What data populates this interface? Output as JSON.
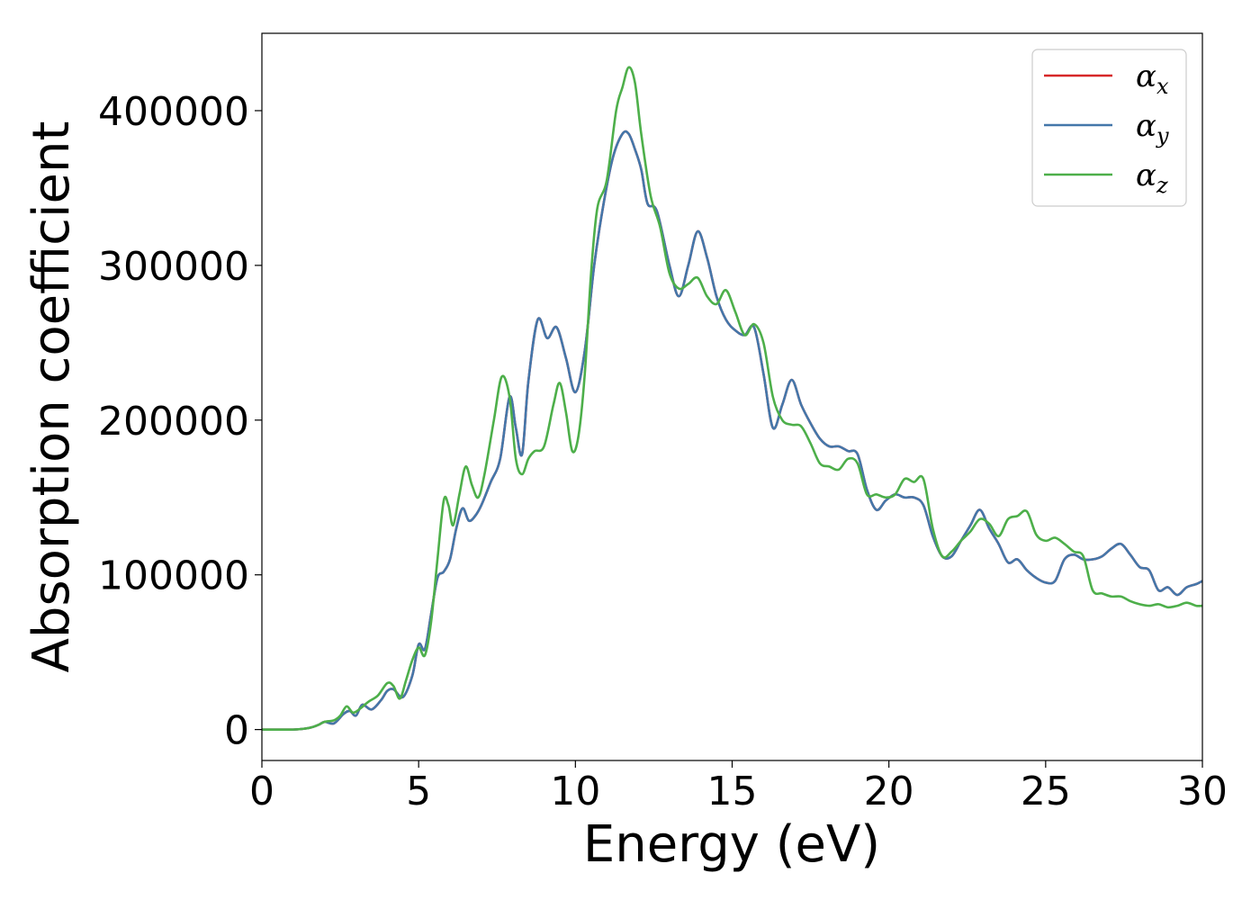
{
  "chart_data": {
    "type": "line",
    "title": "",
    "xlabel": "Energy (eV)",
    "ylabel": "Absorption coefficient",
    "xlim": [
      0,
      30
    ],
    "ylim": [
      -20000,
      450000
    ],
    "x_ticks": [
      0,
      5,
      10,
      15,
      20,
      25,
      30
    ],
    "x_tick_labels": [
      "0",
      "5",
      "10",
      "15",
      "20",
      "25",
      "30"
    ],
    "y_ticks": [
      0,
      100000,
      200000,
      300000,
      400000
    ],
    "y_tick_labels": [
      "0",
      "100000",
      "200000",
      "300000",
      "400000"
    ],
    "grid": false,
    "legend_position": "top-right",
    "series": [
      {
        "name": "α_x",
        "legend_symbol": "α",
        "legend_sub": "x",
        "color": "#d62728",
        "x": [
          0,
          1,
          1.5,
          1.8,
          2.0,
          2.3,
          2.6,
          2.8,
          3.0,
          3.2,
          3.5,
          3.8,
          4.0,
          4.2,
          4.5,
          4.8,
          5.0,
          5.2,
          5.4,
          5.6,
          5.8,
          6.0,
          6.2,
          6.4,
          6.6,
          6.8,
          7.0,
          7.3,
          7.6,
          7.9,
          8.1,
          8.3,
          8.5,
          8.8,
          9.1,
          9.4,
          9.7,
          10.0,
          10.3,
          10.6,
          10.9,
          11.2,
          11.5,
          11.7,
          11.9,
          12.1,
          12.3,
          12.6,
          13.0,
          13.3,
          13.6,
          13.9,
          14.2,
          14.5,
          14.8,
          15.1,
          15.4,
          15.7,
          16.0,
          16.3,
          16.6,
          16.9,
          17.2,
          17.5,
          17.8,
          18.1,
          18.4,
          18.7,
          19.0,
          19.3,
          19.6,
          19.9,
          20.2,
          20.5,
          20.8,
          21.1,
          21.4,
          21.7,
          22.0,
          22.3,
          22.6,
          22.9,
          23.2,
          23.5,
          23.8,
          24.1,
          24.4,
          24.7,
          25.0,
          25.3,
          25.6,
          25.9,
          26.2,
          26.5,
          26.8,
          27.1,
          27.4,
          27.7,
          28.0,
          28.3,
          28.6,
          28.9,
          29.2,
          29.5,
          29.8,
          30.0
        ],
        "y": [
          0,
          0,
          1000,
          3000,
          5000,
          4000,
          10000,
          12000,
          9000,
          16000,
          13000,
          19000,
          25000,
          26000,
          21000,
          35000,
          55000,
          52000,
          75000,
          98000,
          102000,
          110000,
          130000,
          143000,
          135000,
          138000,
          145000,
          160000,
          175000,
          215000,
          195000,
          178000,
          225000,
          265000,
          253000,
          260000,
          240000,
          218000,
          245000,
          300000,
          340000,
          370000,
          385000,
          385000,
          375000,
          362000,
          340000,
          335000,
          300000,
          280000,
          300000,
          322000,
          305000,
          280000,
          265000,
          258000,
          255000,
          260000,
          230000,
          195000,
          210000,
          226000,
          210000,
          198000,
          188000,
          183000,
          183000,
          180000,
          178000,
          155000,
          142000,
          148000,
          152000,
          150000,
          150000,
          145000,
          125000,
          112000,
          112000,
          122000,
          132000,
          142000,
          130000,
          120000,
          108000,
          110000,
          103000,
          98000,
          95000,
          96000,
          110000,
          113000,
          110000,
          110000,
          112000,
          117000,
          120000,
          113000,
          105000,
          103000,
          90000,
          92000,
          87000,
          92000,
          94000,
          96000
        ]
      },
      {
        "name": "α_y",
        "legend_symbol": "α",
        "legend_sub": "y",
        "color": "#4477aa",
        "x": [
          0,
          1,
          1.5,
          1.8,
          2.0,
          2.3,
          2.6,
          2.8,
          3.0,
          3.2,
          3.5,
          3.8,
          4.0,
          4.2,
          4.5,
          4.8,
          5.0,
          5.2,
          5.4,
          5.6,
          5.8,
          6.0,
          6.2,
          6.4,
          6.6,
          6.8,
          7.0,
          7.3,
          7.6,
          7.9,
          8.1,
          8.3,
          8.5,
          8.8,
          9.1,
          9.4,
          9.7,
          10.0,
          10.3,
          10.6,
          10.9,
          11.2,
          11.5,
          11.7,
          11.9,
          12.1,
          12.3,
          12.6,
          13.0,
          13.3,
          13.6,
          13.9,
          14.2,
          14.5,
          14.8,
          15.1,
          15.4,
          15.7,
          16.0,
          16.3,
          16.6,
          16.9,
          17.2,
          17.5,
          17.8,
          18.1,
          18.4,
          18.7,
          19.0,
          19.3,
          19.6,
          19.9,
          20.2,
          20.5,
          20.8,
          21.1,
          21.4,
          21.7,
          22.0,
          22.3,
          22.6,
          22.9,
          23.2,
          23.5,
          23.8,
          24.1,
          24.4,
          24.7,
          25.0,
          25.3,
          25.6,
          25.9,
          26.2,
          26.5,
          26.8,
          27.1,
          27.4,
          27.7,
          28.0,
          28.3,
          28.6,
          28.9,
          29.2,
          29.5,
          29.8,
          30.0
        ],
        "y": [
          0,
          0,
          1000,
          3000,
          5000,
          4000,
          10000,
          12000,
          9000,
          16000,
          13000,
          19000,
          25000,
          26000,
          21000,
          35000,
          55000,
          52000,
          75000,
          98000,
          102000,
          110000,
          130000,
          143000,
          135000,
          138000,
          145000,
          160000,
          175000,
          215000,
          195000,
          178000,
          225000,
          265000,
          253000,
          260000,
          240000,
          218000,
          245000,
          300000,
          340000,
          370000,
          385000,
          385000,
          375000,
          362000,
          340000,
          335000,
          300000,
          280000,
          300000,
          322000,
          305000,
          280000,
          265000,
          258000,
          255000,
          260000,
          230000,
          195000,
          210000,
          226000,
          210000,
          198000,
          188000,
          183000,
          183000,
          180000,
          178000,
          155000,
          142000,
          148000,
          152000,
          150000,
          150000,
          145000,
          125000,
          112000,
          112000,
          122000,
          132000,
          142000,
          130000,
          120000,
          108000,
          110000,
          103000,
          98000,
          95000,
          96000,
          110000,
          113000,
          110000,
          110000,
          112000,
          117000,
          120000,
          113000,
          105000,
          103000,
          90000,
          92000,
          87000,
          92000,
          94000,
          96000
        ]
      },
      {
        "name": "α_z",
        "legend_symbol": "α",
        "legend_sub": "z",
        "color": "#4daf4a",
        "x": [
          0,
          1,
          1.5,
          1.8,
          2.0,
          2.3,
          2.5,
          2.7,
          2.9,
          3.1,
          3.4,
          3.7,
          4.0,
          4.2,
          4.4,
          4.6,
          4.8,
          5.0,
          5.2,
          5.4,
          5.6,
          5.8,
          5.95,
          6.1,
          6.3,
          6.5,
          6.7,
          6.9,
          7.1,
          7.4,
          7.65,
          7.9,
          8.1,
          8.3,
          8.5,
          8.7,
          9.0,
          9.3,
          9.5,
          9.7,
          9.9,
          10.1,
          10.3,
          10.5,
          10.7,
          11.0,
          11.3,
          11.5,
          11.7,
          11.9,
          12.1,
          12.4,
          12.7,
          13.0,
          13.3,
          13.6,
          13.9,
          14.2,
          14.5,
          14.8,
          15.1,
          15.4,
          15.7,
          16.0,
          16.3,
          16.6,
          16.9,
          17.2,
          17.5,
          17.8,
          18.1,
          18.4,
          18.7,
          19.0,
          19.3,
          19.6,
          19.9,
          20.2,
          20.5,
          20.8,
          21.1,
          21.4,
          21.7,
          22.0,
          22.3,
          22.6,
          22.9,
          23.2,
          23.5,
          23.8,
          24.1,
          24.4,
          24.7,
          25.0,
          25.3,
          25.6,
          25.9,
          26.2,
          26.5,
          26.8,
          27.1,
          27.4,
          27.7,
          28.0,
          28.3,
          28.6,
          28.9,
          29.2,
          29.5,
          29.8,
          30.0
        ],
        "y": [
          0,
          0,
          1000,
          3000,
          5000,
          6000,
          9000,
          15000,
          11000,
          13000,
          18000,
          22000,
          30000,
          28000,
          20000,
          32000,
          45000,
          53000,
          48000,
          70000,
          110000,
          148000,
          145000,
          132000,
          152000,
          170000,
          158000,
          150000,
          165000,
          200000,
          228000,
          215000,
          175000,
          165000,
          175000,
          180000,
          183000,
          210000,
          224000,
          205000,
          180000,
          190000,
          230000,
          295000,
          337000,
          355000,
          400000,
          415000,
          428000,
          418000,
          385000,
          345000,
          325000,
          295000,
          285000,
          288000,
          292000,
          280000,
          275000,
          284000,
          270000,
          255000,
          262000,
          250000,
          215000,
          200000,
          197000,
          196000,
          185000,
          172000,
          170000,
          168000,
          175000,
          172000,
          152000,
          152000,
          150000,
          152000,
          162000,
          160000,
          162000,
          130000,
          112000,
          115000,
          122000,
          128000,
          136000,
          133000,
          125000,
          136000,
          138000,
          141000,
          126000,
          122000,
          124000,
          120000,
          115000,
          112000,
          90000,
          88000,
          86000,
          86000,
          83000,
          81000,
          80000,
          81000,
          79000,
          80000,
          82000,
          80000,
          80000
        ]
      }
    ]
  }
}
